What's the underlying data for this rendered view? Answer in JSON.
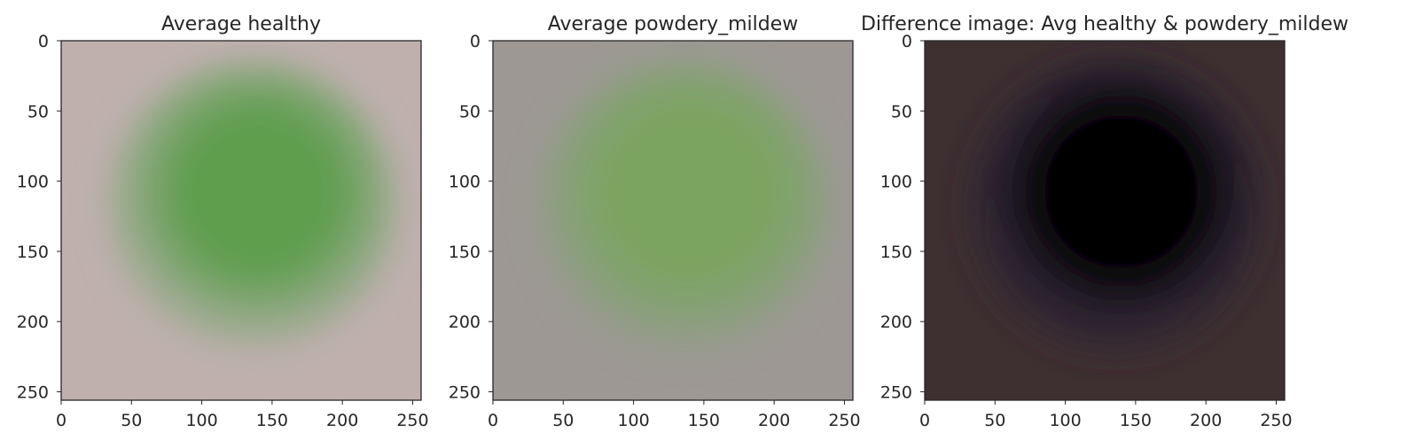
{
  "chart_data": [
    {
      "type": "image",
      "title": "Average healthy",
      "xlim": [
        0,
        256
      ],
      "ylim": [
        256,
        0
      ],
      "xticks": [
        0,
        50,
        100,
        150,
        200,
        250
      ],
      "yticks": [
        0,
        50,
        100,
        150,
        200,
        250
      ],
      "colors": {
        "background": "#bfb0ae",
        "ring": "#8fa882",
        "center": "#5f9e4e"
      }
    },
    {
      "type": "image",
      "title": "Average powdery_mildew",
      "xlim": [
        0,
        256
      ],
      "ylim": [
        256,
        0
      ],
      "xticks": [
        0,
        50,
        100,
        150,
        200,
        250
      ],
      "yticks": [
        0,
        50,
        100,
        150,
        200,
        250
      ],
      "colors": {
        "background": "#9d9894",
        "ring": "#88a07a",
        "center": "#7aa45e"
      }
    },
    {
      "type": "image",
      "title": "Difference image: Avg healthy & powdery_mildew",
      "xlim": [
        0,
        256
      ],
      "ylim": [
        256,
        0
      ],
      "xticks": [
        0,
        50,
        100,
        150,
        200,
        250
      ],
      "yticks": [
        0,
        50,
        100,
        150,
        200,
        250
      ],
      "colors": {
        "background": "#3e2f31",
        "ring": "#2a2230",
        "center": "#050505"
      }
    }
  ]
}
